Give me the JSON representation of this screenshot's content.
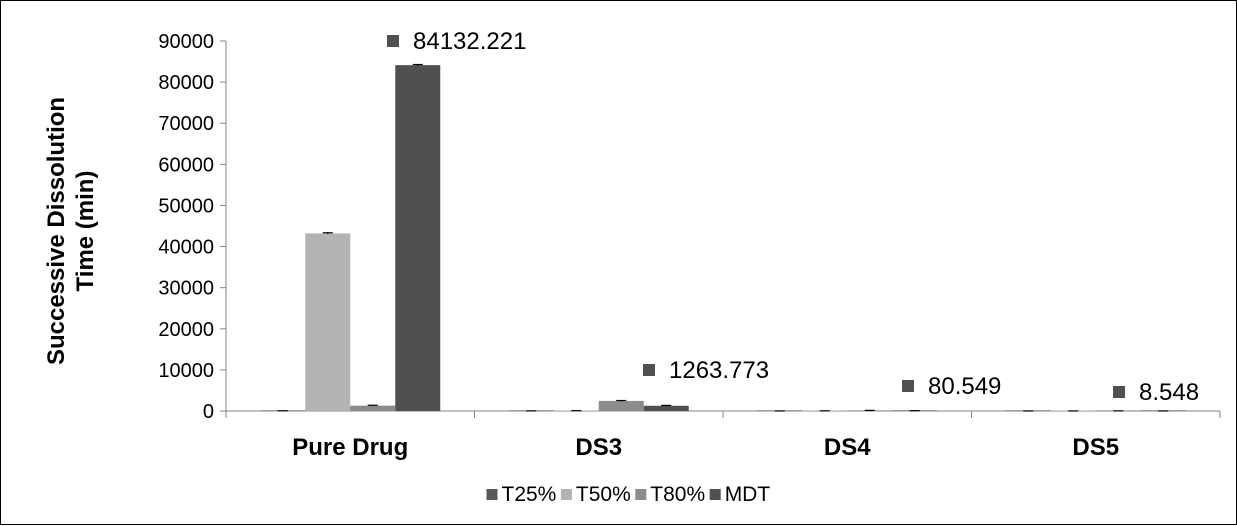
{
  "chart_data": {
    "type": "bar",
    "categories": [
      "Pure Drug",
      "DS3",
      "DS4",
      "DS5"
    ],
    "series": [
      {
        "name": "T25%",
        "color": "#595959",
        "values": [
          60,
          30,
          15,
          5
        ]
      },
      {
        "name": "T50%",
        "color": "#b3b3b3",
        "values": [
          43200,
          80,
          40,
          10
        ]
      },
      {
        "name": "T80%",
        "color": "#8c8c8c",
        "values": [
          1300,
          2450,
          150,
          30
        ]
      },
      {
        "name": "MDT",
        "color": "#505050",
        "values": [
          84132.221,
          1263.773,
          80.549,
          8.548
        ]
      }
    ],
    "error": [
      [
        0,
        0,
        0,
        0
      ],
      [
        150,
        0,
        0,
        0
      ],
      [
        100,
        100,
        0,
        0
      ],
      [
        150,
        100,
        0,
        0
      ]
    ],
    "data_labels": [
      {
        "series": "MDT",
        "category": "Pure Drug",
        "text": "84132.221"
      },
      {
        "series": "MDT",
        "category": "DS3",
        "text": "1263.773"
      },
      {
        "series": "MDT",
        "category": "DS4",
        "text": "80.549"
      },
      {
        "series": "MDT",
        "category": "DS5",
        "text": "8.548"
      }
    ],
    "title": "",
    "xlabel": "",
    "ylabel": [
      "Successive Dissolution",
      "Time (min)"
    ],
    "ylim": [
      0,
      90000
    ],
    "yticks": [
      0,
      10000,
      20000,
      30000,
      40000,
      50000,
      60000,
      70000,
      80000,
      90000
    ],
    "grid": false,
    "legend": "bottom"
  }
}
